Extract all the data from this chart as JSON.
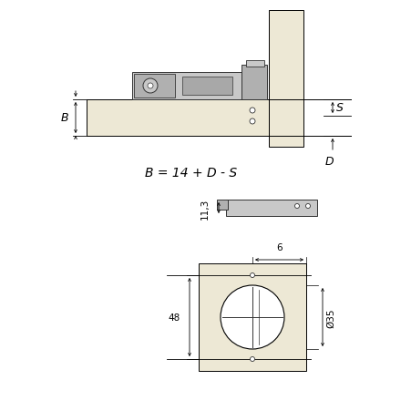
{
  "bg_color": "#ffffff",
  "wood_color": "#ede8d5",
  "metal_light": "#c8c8c8",
  "metal_mid": "#b0b0b0",
  "metal_dark": "#888888",
  "dark": "#333333",
  "black": "#000000",
  "formula": "B = 14 + D - S",
  "dim_B": "B",
  "dim_S": "S",
  "dim_D": "D",
  "dim_113": "11,3",
  "dim_6": "6",
  "dim_48": "48",
  "dim_35": "Ø35",
  "figsize": [
    4.52,
    4.52
  ],
  "dpi": 100
}
